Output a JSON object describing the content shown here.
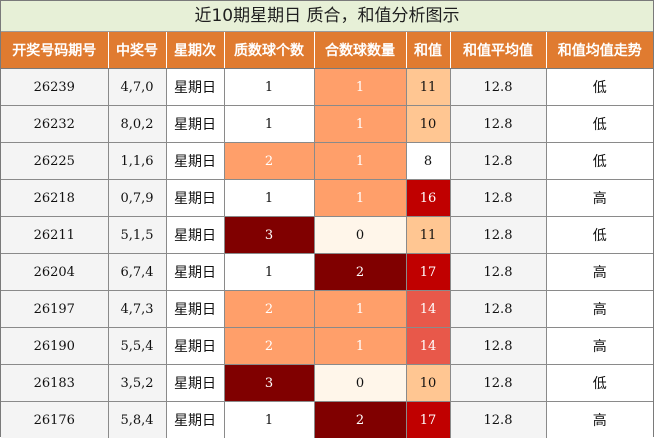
{
  "title": "近10期星期日 质合，和值分析图示",
  "headers": [
    "开奖号码期号",
    "中奖号",
    "星期次",
    "质数球个数",
    "合数球数量",
    "和值",
    "和值平均值",
    "和值均值走势"
  ],
  "rows": [
    {
      "issue": "26239",
      "numbers": "4,7,0",
      "weekday": "星期日",
      "prime": "1",
      "composite": "1",
      "sum": "11",
      "avg": "12.8",
      "trend": "低"
    },
    {
      "issue": "26232",
      "numbers": "8,0,2",
      "weekday": "星期日",
      "prime": "1",
      "composite": "1",
      "sum": "10",
      "avg": "12.8",
      "trend": "低"
    },
    {
      "issue": "26225",
      "numbers": "1,1,6",
      "weekday": "星期日",
      "prime": "2",
      "composite": "1",
      "sum": "8",
      "avg": "12.8",
      "trend": "低"
    },
    {
      "issue": "26218",
      "numbers": "0,7,9",
      "weekday": "星期日",
      "prime": "1",
      "composite": "1",
      "sum": "16",
      "avg": "12.8",
      "trend": "高"
    },
    {
      "issue": "26211",
      "numbers": "5,1,5",
      "weekday": "星期日",
      "prime": "3",
      "composite": "0",
      "sum": "11",
      "avg": "12.8",
      "trend": "低"
    },
    {
      "issue": "26204",
      "numbers": "6,7,4",
      "weekday": "星期日",
      "prime": "1",
      "composite": "2",
      "sum": "17",
      "avg": "12.8",
      "trend": "高"
    },
    {
      "issue": "26197",
      "numbers": "4,7,3",
      "weekday": "星期日",
      "prime": "2",
      "composite": "1",
      "sum": "14",
      "avg": "12.8",
      "trend": "高"
    },
    {
      "issue": "26190",
      "numbers": "5,5,4",
      "weekday": "星期日",
      "prime": "2",
      "composite": "1",
      "sum": "14",
      "avg": "12.8",
      "trend": "高"
    },
    {
      "issue": "26183",
      "numbers": "3,5,2",
      "weekday": "星期日",
      "prime": "3",
      "composite": "0",
      "sum": "10",
      "avg": "12.8",
      "trend": "低"
    },
    {
      "issue": "26176",
      "numbers": "5,8,4",
      "weekday": "星期日",
      "prime": "1",
      "composite": "2",
      "sum": "17",
      "avg": "12.8",
      "trend": "高"
    }
  ],
  "colors": {
    "header_bg": "#e07b30",
    "title_bg": "#e7f0d7",
    "count_1": "#ff9f6a",
    "count_2": "#ff9f6a",
    "count_3": "#800000",
    "sum_low": "#ffc692",
    "sum_high": "#c00000"
  }
}
